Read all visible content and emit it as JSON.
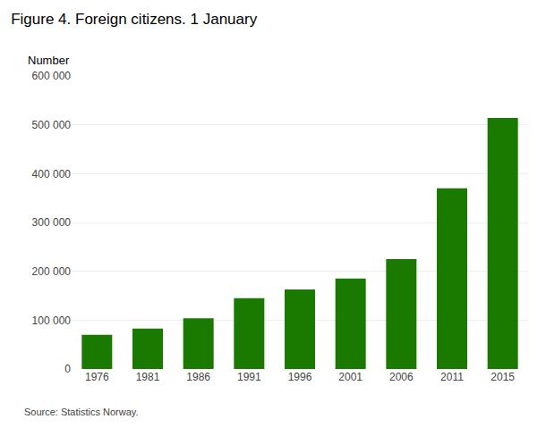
{
  "chart_data": {
    "type": "bar",
    "title": "Figure 4. Foreign citizens. 1 January",
    "ylabel": "Number",
    "annotations": [
      "Source: Statistics Norway."
    ],
    "categories": [
      "1976",
      "1981",
      "1986",
      "1991",
      "1996",
      "2001",
      "2006",
      "2011",
      "2015"
    ],
    "values": [
      70000,
      83000,
      104000,
      145000,
      163000,
      185000,
      225000,
      370000,
      514000
    ],
    "color": "#1a7a00",
    "ylim": [
      0,
      600000
    ],
    "yticks": [
      0,
      {
        "value": 100000,
        "label": "100 000"
      },
      {
        "value": 200000,
        "label": "200 000"
      },
      {
        "value": 300000,
        "label": "300 000"
      },
      {
        "value": 400000,
        "label": "400 000"
      },
      {
        "value": 500000,
        "label": "500 000"
      },
      {
        "value": 600000,
        "label": "600 000"
      }
    ],
    "grid": true
  }
}
